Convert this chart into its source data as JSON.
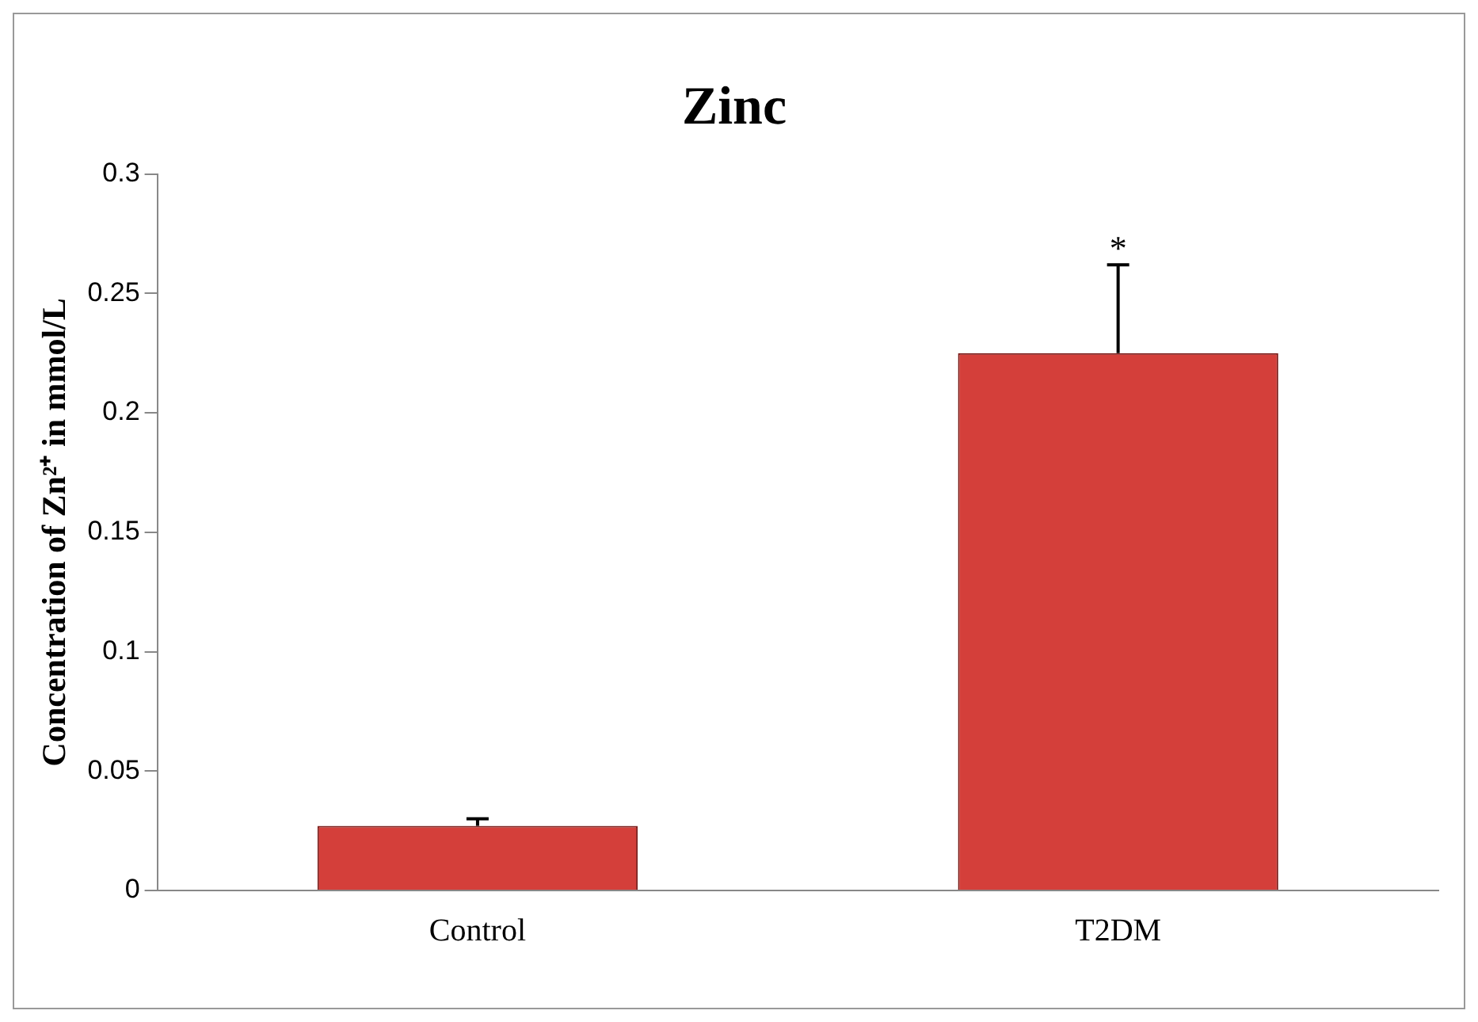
{
  "chart_data": {
    "type": "bar",
    "title": "Zinc",
    "ylabel": "Concentration of Zn²⁺ in mmol/L",
    "categories": [
      "Control",
      "T2DM"
    ],
    "values": [
      0.027,
      0.225
    ],
    "errors": [
      [
        0.027,
        0.03
      ],
      [
        0.225,
        0.262
      ]
    ],
    "color": "#d43f3a",
    "ylim": [
      0,
      0.3
    ],
    "yticks": [
      0,
      0.05,
      0.1,
      0.15,
      0.2,
      0.25,
      0.3
    ],
    "annotations": [
      {
        "text": "*",
        "x": "T2DM",
        "y": 0.262
      }
    ],
    "grid": false,
    "legend": false
  }
}
